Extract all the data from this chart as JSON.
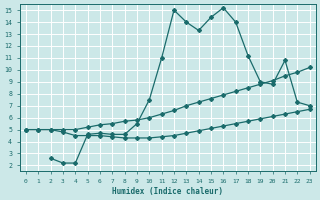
{
  "xlabel": "Humidex (Indice chaleur)",
  "bg_color": "#cce8e8",
  "grid_color": "#ffffff",
  "line_color": "#1a6b6b",
  "xlim": [
    -0.5,
    23.5
  ],
  "ylim": [
    1.5,
    15.5
  ],
  "xticks": [
    0,
    1,
    2,
    3,
    4,
    5,
    6,
    7,
    8,
    9,
    10,
    11,
    12,
    13,
    14,
    15,
    16,
    17,
    18,
    19,
    20,
    21,
    22,
    23
  ],
  "yticks": [
    2,
    3,
    4,
    5,
    6,
    7,
    8,
    9,
    10,
    11,
    12,
    13,
    14,
    15
  ],
  "line_peak_x": [
    2,
    3,
    4,
    5,
    6,
    7,
    8,
    9,
    10,
    11,
    12,
    13,
    14,
    15,
    16,
    17,
    18,
    19,
    20,
    21,
    22,
    23
  ],
  "line_peak_y": [
    2.6,
    2.2,
    2.2,
    4.6,
    4.7,
    4.6,
    4.6,
    5.5,
    7.5,
    11.0,
    15.0,
    14.0,
    13.3,
    14.4,
    15.2,
    14.0,
    11.2,
    9.0,
    8.8,
    10.8,
    7.3,
    7.0
  ],
  "line_upper_x": [
    0,
    1,
    2,
    3,
    4,
    5,
    6,
    7,
    8,
    9,
    10,
    11,
    12,
    13,
    14,
    15,
    16,
    17,
    18,
    19,
    20,
    21,
    22,
    23
  ],
  "line_upper_y": [
    5.0,
    5.0,
    5.0,
    5.0,
    5.0,
    5.2,
    5.4,
    5.5,
    5.7,
    5.8,
    6.0,
    6.3,
    6.6,
    7.0,
    7.3,
    7.6,
    7.9,
    8.2,
    8.5,
    8.8,
    9.1,
    9.5,
    9.8,
    10.2
  ],
  "line_lower_x": [
    0,
    1,
    2,
    3,
    4,
    5,
    6,
    7,
    8,
    9,
    10,
    11,
    12,
    13,
    14,
    15,
    16,
    17,
    18,
    19,
    20,
    21,
    22,
    23
  ],
  "line_lower_y": [
    5.0,
    5.0,
    5.0,
    4.8,
    4.5,
    4.5,
    4.5,
    4.4,
    4.3,
    4.3,
    4.3,
    4.4,
    4.5,
    4.7,
    4.9,
    5.1,
    5.3,
    5.5,
    5.7,
    5.9,
    6.1,
    6.3,
    6.5,
    6.7
  ]
}
